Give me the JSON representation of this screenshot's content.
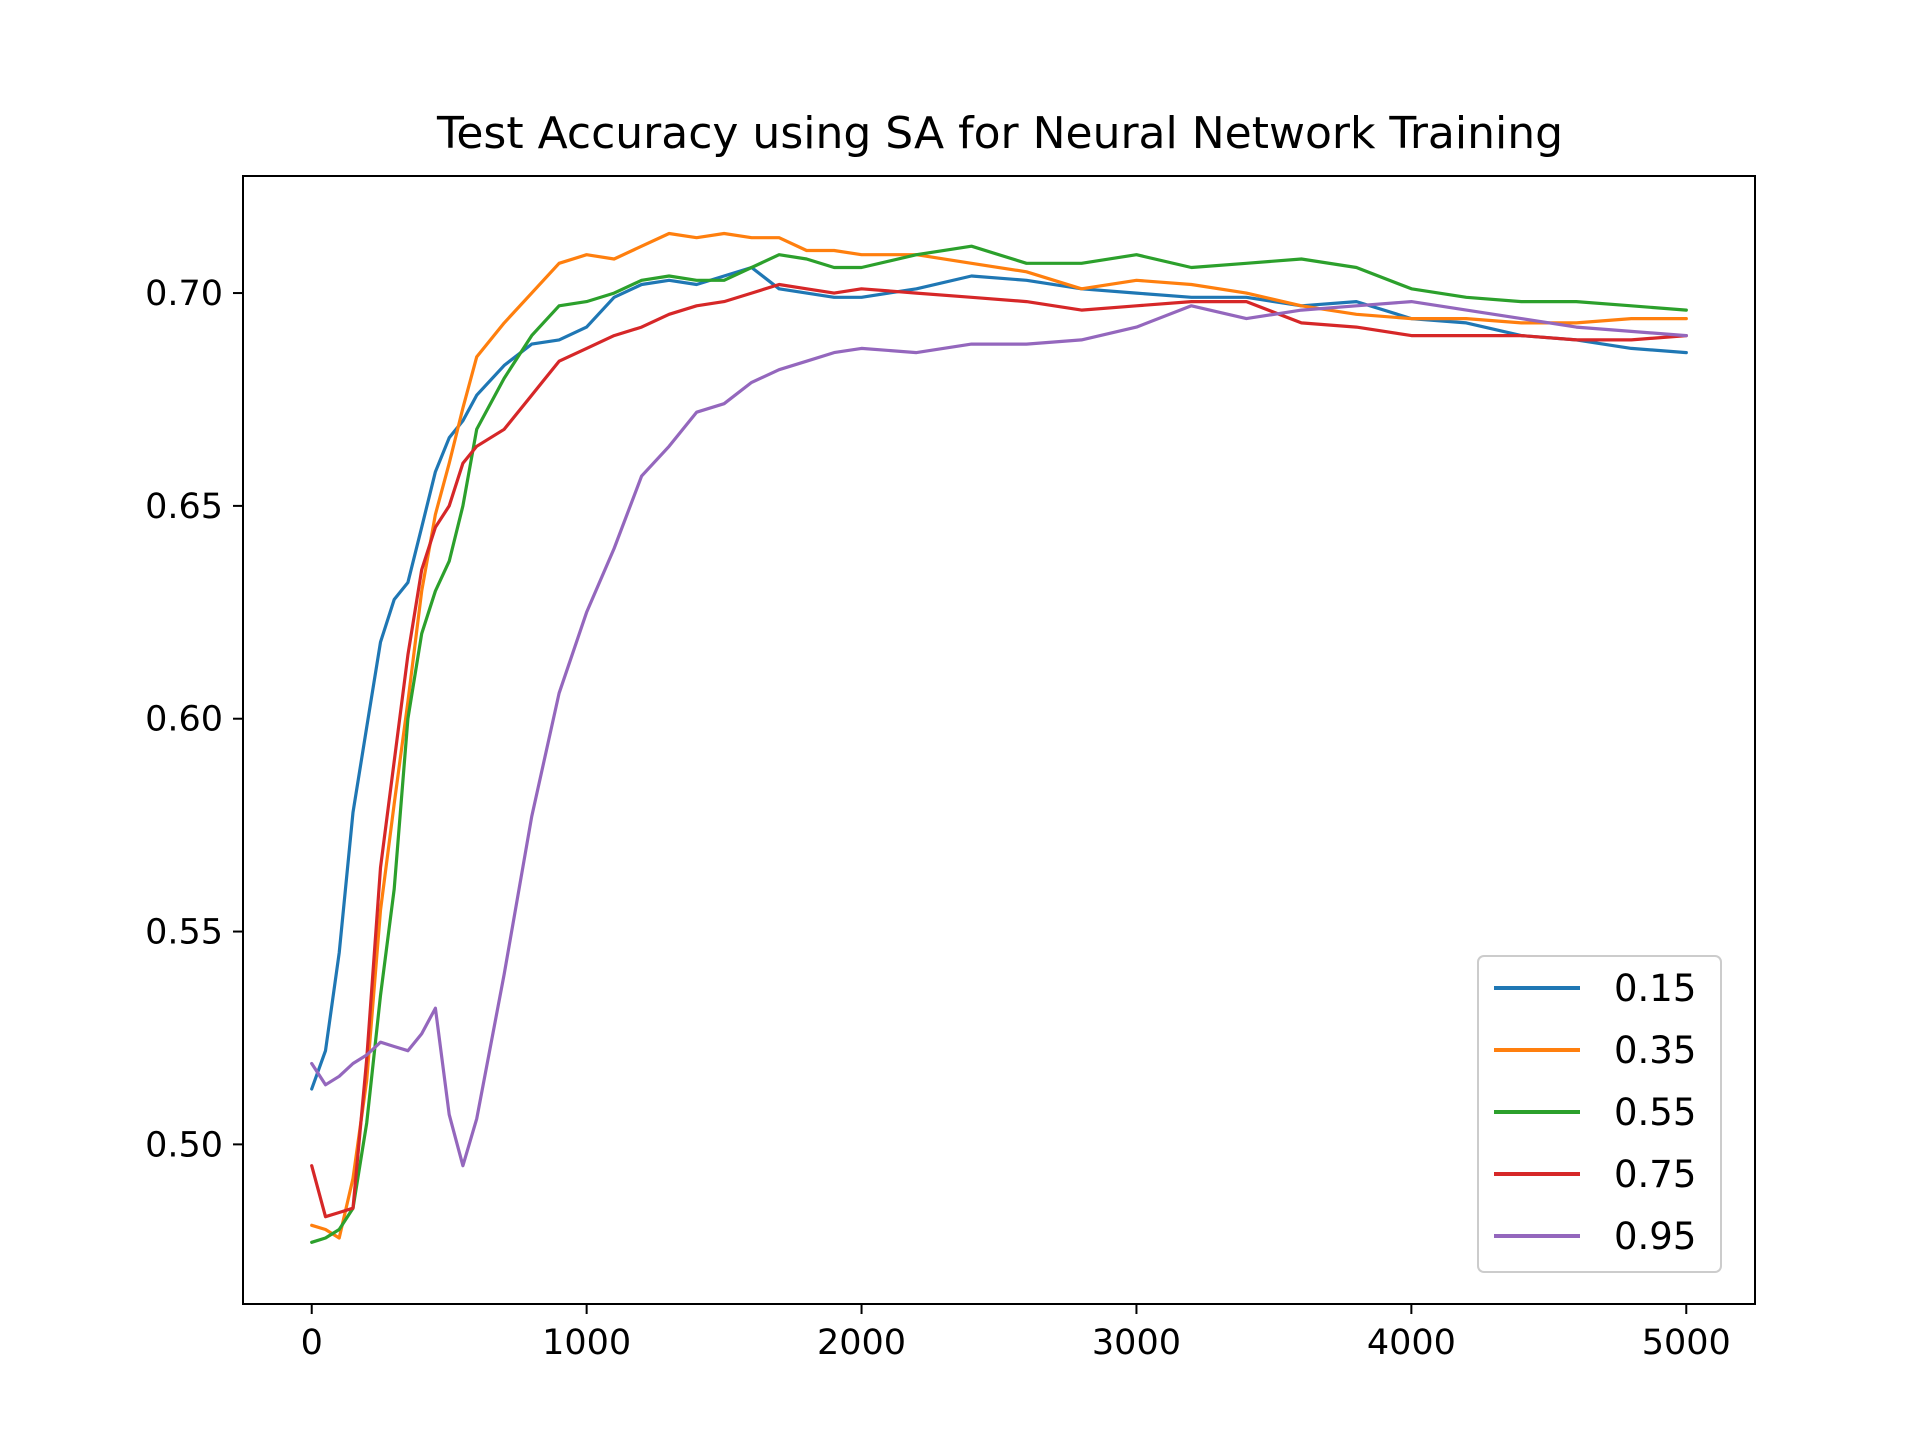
{
  "chart_data": {
    "type": "line",
    "title": "Test Accuracy using SA for Neural Network Training",
    "xlabel": "",
    "ylabel": "",
    "xlim": [
      -250,
      5250
    ],
    "ylim": [
      0.4625,
      0.7275
    ],
    "x_ticks": [
      0,
      1000,
      2000,
      3000,
      4000,
      5000
    ],
    "x_tick_labels": [
      "0",
      "1000",
      "2000",
      "3000",
      "4000",
      "5000"
    ],
    "y_ticks": [
      0.5,
      0.55,
      0.6,
      0.65,
      0.7
    ],
    "y_tick_labels": [
      "0.50",
      "0.55",
      "0.60",
      "0.65",
      "0.70"
    ],
    "grid": false,
    "legend_position": "lower-right",
    "x": [
      0,
      50,
      100,
      150,
      200,
      250,
      300,
      350,
      400,
      450,
      500,
      550,
      600,
      700,
      800,
      900,
      1000,
      1100,
      1200,
      1300,
      1400,
      1500,
      1600,
      1700,
      1800,
      1900,
      2000,
      2200,
      2400,
      2600,
      2800,
      3000,
      3200,
      3400,
      3600,
      3800,
      4000,
      4200,
      4400,
      4600,
      4800,
      5000
    ],
    "series": [
      {
        "name": "0.15",
        "color": "#1f77b4",
        "values": [
          0.513,
          0.522,
          0.545,
          0.578,
          0.598,
          0.618,
          0.628,
          0.632,
          0.645,
          0.658,
          0.666,
          0.67,
          0.676,
          0.683,
          0.688,
          0.689,
          0.692,
          0.699,
          0.702,
          0.703,
          0.702,
          0.704,
          0.706,
          0.701,
          0.7,
          0.699,
          0.699,
          0.701,
          0.704,
          0.703,
          0.701,
          0.7,
          0.699,
          0.699,
          0.697,
          0.698,
          0.694,
          0.693,
          0.69,
          0.689,
          0.687,
          0.686
        ]
      },
      {
        "name": "0.35",
        "color": "#ff7f0e",
        "values": [
          0.481,
          0.48,
          0.478,
          0.492,
          0.515,
          0.555,
          0.58,
          0.604,
          0.63,
          0.648,
          0.66,
          0.673,
          0.685,
          0.693,
          0.7,
          0.707,
          0.709,
          0.708,
          0.711,
          0.714,
          0.713,
          0.714,
          0.713,
          0.713,
          0.71,
          0.71,
          0.709,
          0.709,
          0.707,
          0.705,
          0.701,
          0.703,
          0.702,
          0.7,
          0.697,
          0.695,
          0.694,
          0.694,
          0.693,
          0.693,
          0.694,
          0.694
        ]
      },
      {
        "name": "0.55",
        "color": "#2ca02c",
        "values": [
          0.477,
          0.478,
          0.48,
          0.485,
          0.505,
          0.535,
          0.56,
          0.6,
          0.62,
          0.63,
          0.637,
          0.65,
          0.668,
          0.68,
          0.69,
          0.697,
          0.698,
          0.7,
          0.703,
          0.704,
          0.703,
          0.703,
          0.706,
          0.709,
          0.708,
          0.706,
          0.706,
          0.709,
          0.711,
          0.707,
          0.707,
          0.709,
          0.706,
          0.707,
          0.708,
          0.706,
          0.701,
          0.699,
          0.698,
          0.698,
          0.697,
          0.696
        ]
      },
      {
        "name": "0.75",
        "color": "#d62728",
        "values": [
          0.495,
          0.483,
          0.484,
          0.485,
          0.52,
          0.565,
          0.59,
          0.615,
          0.635,
          0.645,
          0.65,
          0.66,
          0.664,
          0.668,
          0.676,
          0.684,
          0.687,
          0.69,
          0.692,
          0.695,
          0.697,
          0.698,
          0.7,
          0.702,
          0.701,
          0.7,
          0.701,
          0.7,
          0.699,
          0.698,
          0.696,
          0.697,
          0.698,
          0.698,
          0.693,
          0.692,
          0.69,
          0.69,
          0.69,
          0.689,
          0.689,
          0.69
        ]
      },
      {
        "name": "0.95",
        "color": "#9467bd",
        "values": [
          0.519,
          0.514,
          0.516,
          0.519,
          0.521,
          0.524,
          0.523,
          0.522,
          0.526,
          0.532,
          0.507,
          0.495,
          0.506,
          0.54,
          0.577,
          0.606,
          0.625,
          0.64,
          0.657,
          0.664,
          0.672,
          0.674,
          0.679,
          0.682,
          0.684,
          0.686,
          0.687,
          0.686,
          0.688,
          0.688,
          0.689,
          0.692,
          0.697,
          0.694,
          0.696,
          0.697,
          0.698,
          0.696,
          0.694,
          0.692,
          0.691,
          0.69
        ]
      }
    ]
  }
}
